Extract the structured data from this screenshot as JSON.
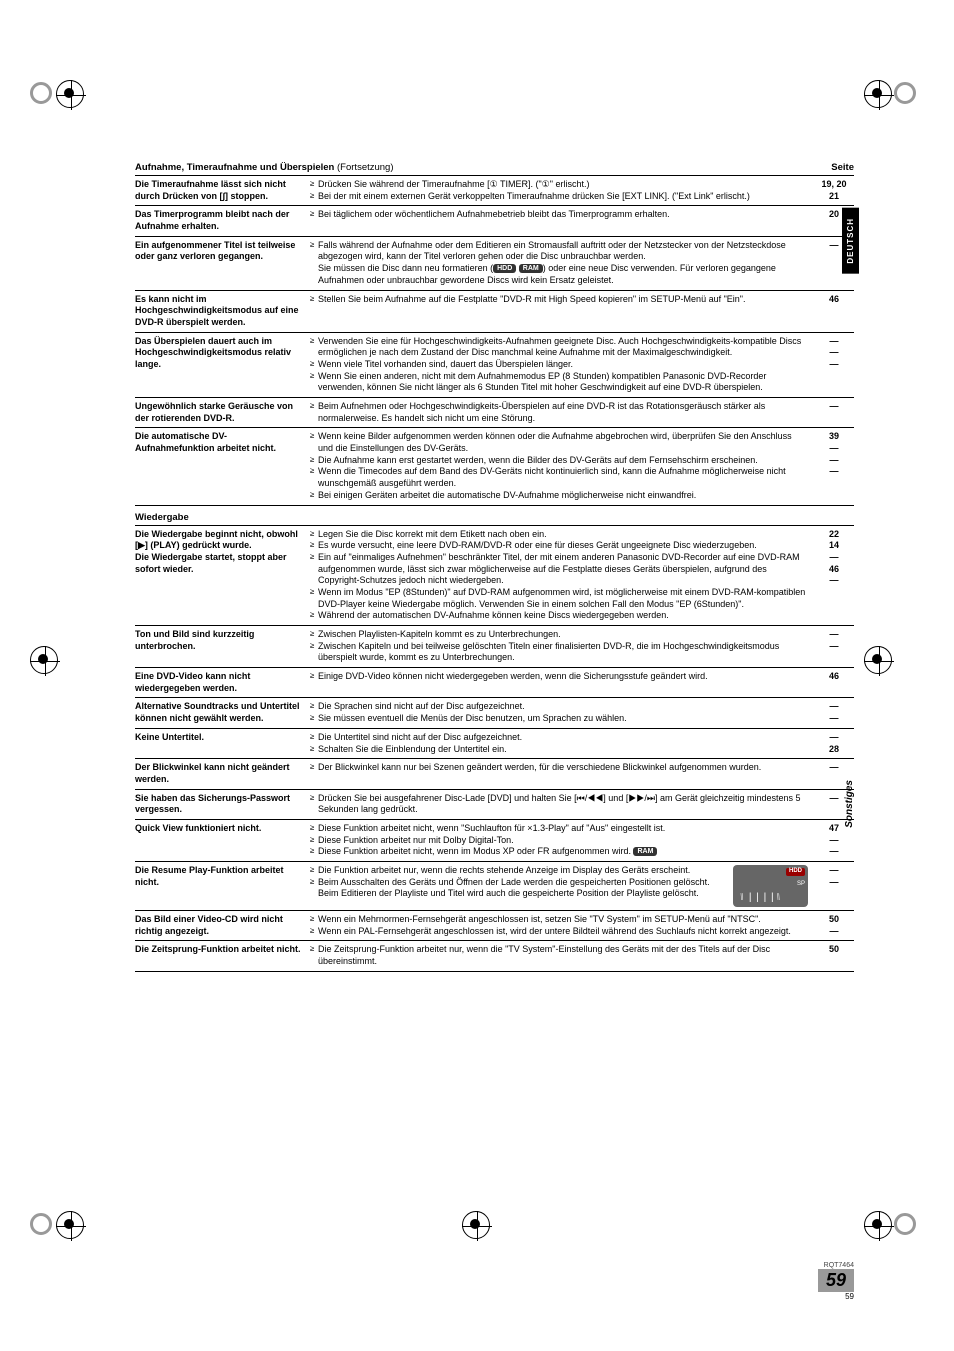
{
  "side_tabs": {
    "deutsch": "DEUTSCH",
    "sonstiges": "Sonstiges"
  },
  "section1": {
    "title": "Aufnahme, Timeraufnahme und Überspielen",
    "cont": "(Fortsetzung)",
    "seite_label": "Seite",
    "rows": [
      {
        "problem": "Die Timeraufnahme lässt sich nicht durch Drücken von [∫] stoppen.",
        "items": [
          "Drücken Sie während der Timeraufnahme [① TIMER]. (\"①\" erlischt.)",
          "Bei der mit einem externen Gerät verkoppelten Timeraufnahme drücken Sie [EXT LINK]. (\"Ext Link\" erlischt.)"
        ],
        "pages": [
          "19, 20",
          "21"
        ]
      },
      {
        "problem": "Das Timerprogramm bleibt nach der Aufnahme erhalten.",
        "items": [
          "Bei täglichem oder wöchentlichem Aufnahmebetrieb bleibt das Timerprogramm erhalten."
        ],
        "pages": [
          "20"
        ]
      },
      {
        "problem": "Ein aufgenommener Titel ist teilweise oder ganz verloren gegangen.",
        "items": [
          "Falls während der Aufnahme oder dem Editieren ein Stromausfall auftritt oder der Netzstecker von der Netzsteckdose abgezogen wird, kann der Titel verloren gehen oder die Disc unbrauchbar werden.\nSie müssen die Disc dann neu formatieren (HDD RAM) oder eine neue Disc verwenden. Für verloren gegangene Aufnahmen oder unbrauchbar gewordene Discs wird kein Ersatz geleistet."
        ],
        "pages": [
          "—"
        ]
      },
      {
        "problem": "Es kann nicht im Hochgeschwindigkeitsmodus auf eine DVD-R überspielt werden.",
        "items": [
          "Stellen Sie beim Aufnahme auf die Festplatte \"DVD-R mit High Speed kopieren\" im SETUP-Menü auf \"Ein\"."
        ],
        "pages": [
          "46"
        ]
      },
      {
        "problem": "Das Überspielen dauert auch im Hochgeschwindigkeitsmodus relativ lange.",
        "items": [
          "Verwenden Sie eine für Hochgeschwindigkeits-Aufnahmen geeignete Disc. Auch Hochgeschwindigkeits-kompatible Discs ermöglichen je nach dem Zustand der Disc manchmal keine Aufnahme mit der Maximalgeschwindigkeit.",
          "Wenn viele Titel vorhanden sind, dauert das Überspielen länger.",
          "Wenn Sie einen anderen, nicht mit dem Aufnahmemodus EP (8 Stunden) kompatiblen Panasonic DVD-Recorder verwenden, können Sie nicht länger als 6 Stunden Titel mit hoher Geschwindigkeit auf eine DVD-R überspielen."
        ],
        "pages": [
          "—",
          "—",
          "—"
        ]
      },
      {
        "problem": "Ungewöhnlich starke Geräusche von der rotierenden DVD-R.",
        "items": [
          "Beim Aufnehmen oder Hochgeschwindigkeits-Überspielen auf eine DVD-R ist das Rotationsgeräusch stärker als normalerweise. Es handelt sich nicht um eine Störung."
        ],
        "pages": [
          "—"
        ]
      },
      {
        "problem": "Die automatische DV-Aufnahmefunktion arbeitet nicht.",
        "items": [
          "Wenn keine Bilder aufgenommen werden können oder die Aufnahme abgebrochen wird, überprüfen Sie den Anschluss und die Einstellungen des DV-Geräts.",
          "Die Aufnahme kann erst gestartet werden, wenn die Bilder des DV-Geräts auf dem Fernsehschirm erscheinen.",
          "Wenn die Timecodes auf dem Band des DV-Geräts nicht kontinuierlich sind, kann die Aufnahme möglicherweise nicht wunschgemäß ausgeführt werden.",
          "Bei einigen Geräten arbeitet die automatische DV-Aufnahme möglicherweise nicht einwandfrei."
        ],
        "pages": [
          "39",
          "—",
          "—",
          "—"
        ]
      }
    ]
  },
  "section2": {
    "title": "Wiedergabe",
    "rows": [
      {
        "problem": "Die Wiedergabe beginnt nicht, obwohl [▶] (PLAY) gedrückt wurde.\nDie Wiedergabe startet, stoppt aber sofort wieder.",
        "items": [
          "Legen Sie die Disc korrekt mit dem Etikett nach oben ein.",
          "Es wurde versucht, eine leere DVD-RAM/DVD-R oder eine für dieses Gerät ungeeignete Disc wiederzugeben.",
          "Ein auf \"einmaliges Aufnehmen\" beschränkter Titel, der mit einem anderen Panasonic DVD-Recorder auf eine DVD-RAM aufgenommen wurde, lässt sich zwar möglicherweise auf die Festplatte dieses Geräts überspielen, aufgrund des Copyright-Schutzes jedoch nicht wiedergeben.",
          "Wenn im Modus \"EP (8Stunden)\" auf DVD-RAM aufgenommen wird, ist möglicherweise mit einem DVD-RAM-kompatiblen DVD-Player keine Wiedergabe möglich. Verwenden Sie in einem solchen Fall den Modus \"EP (6Stunden)\".",
          "Während der automatischen DV-Aufnahme können keine Discs wiedergegeben werden."
        ],
        "pages": [
          "22",
          "14",
          "—",
          "46",
          "—"
        ]
      },
      {
        "problem": "Ton und Bild sind kurzzeitig unterbrochen.",
        "items": [
          "Zwischen Playlisten-Kapiteln kommt es zu Unterbrechungen.",
          "Zwischen Kapiteln und bei teilweise gelöschten Titeln einer finalisierten DVD-R, die im Hochgeschwindigkeitsmodus überspielt wurde, kommt es zu Unterbrechungen."
        ],
        "pages": [
          "—",
          "—"
        ]
      },
      {
        "problem": "Eine DVD-Video kann nicht wiedergegeben werden.",
        "items": [
          "Einige DVD-Video können nicht wiedergegeben werden, wenn die Sicherungsstufe geändert wird."
        ],
        "pages": [
          "46"
        ]
      },
      {
        "problem": "Alternative Soundtracks und Untertitel können nicht gewählt werden.",
        "items": [
          "Die Sprachen sind nicht auf der Disc aufgezeichnet.",
          "Sie müssen eventuell die Menüs der Disc benutzen, um Sprachen zu wählen."
        ],
        "pages": [
          "—",
          "—"
        ]
      },
      {
        "problem": "Keine Untertitel.",
        "items": [
          "Die Untertitel sind nicht auf der Disc aufgezeichnet.",
          "Schalten Sie die Einblendung der Untertitel ein."
        ],
        "pages": [
          "—",
          "28"
        ]
      },
      {
        "problem": "Der Blickwinkel kann nicht geändert werden.",
        "items": [
          "Der Blickwinkel kann nur bei Szenen geändert werden, für die verschiedene Blickwinkel aufgenommen wurden."
        ],
        "pages": [
          "—"
        ]
      },
      {
        "problem": "Sie haben das Sicherungs-Passwort vergessen.",
        "items": [
          "Drücken Sie bei ausgefahrener Disc-Lade [DVD] und halten Sie [⏮/◀◀] und [▶▶/⏭] am Gerät gleichzeitig mindestens 5 Sekunden lang gedrückt."
        ],
        "pages": [
          "—"
        ]
      },
      {
        "problem": "Quick View funktioniert nicht.",
        "items": [
          "Diese Funktion arbeitet nicht, wenn \"Suchlaufton für ×1.3-Play\" auf \"Aus\" eingestellt ist.",
          "Diese Funktion arbeitet nur mit Dolby Digital-Ton.",
          "Diese Funktion arbeitet nicht, wenn im Modus XP oder FR aufgenommen wird. RAM"
        ],
        "pages": [
          "47",
          "—",
          "—"
        ]
      },
      {
        "problem": "Die Resume Play-Funktion arbeitet nicht.",
        "items": [
          "Die Funktion arbeitet nur, wenn die rechts stehende Anzeige im Display des Geräts erscheint.",
          "Beim Ausschalten des Geräts und Öffnen der Lade werden die gespeicherten Positionen gelöscht. Beim Editieren der Playliste und Titel wird auch die gespeicherte Position der Playliste gelöscht."
        ],
        "pages": [
          "—",
          "—"
        ],
        "has_display": true
      },
      {
        "problem": "Das Bild einer Video-CD wird nicht richtig angezeigt.",
        "items": [
          "Wenn ein Mehrnormen-Fernsehgerät angeschlossen ist, setzen Sie \"TV System\" im SETUP-Menü auf \"NTSC\".",
          "Wenn ein PAL-Fernsehgerät angeschlossen ist, wird der untere Bildteil während des Suchlaufs nicht korrekt angezeigt."
        ],
        "pages": [
          "50",
          "—"
        ]
      },
      {
        "problem": "Die Zeitsprung-Funktion arbeitet nicht.",
        "items": [
          "Die Zeitsprung-Funktion arbeitet nur, wenn die \"TV System\"-Einstellung des Geräts mit der des Titels auf der Disc übereinstimmt."
        ],
        "pages": [
          "50"
        ]
      }
    ]
  },
  "footer": {
    "rqt": "RQT7464",
    "big_page": "59",
    "small_page": "59"
  },
  "display_box": {
    "hdd": "HDD",
    "sp": "SP"
  }
}
